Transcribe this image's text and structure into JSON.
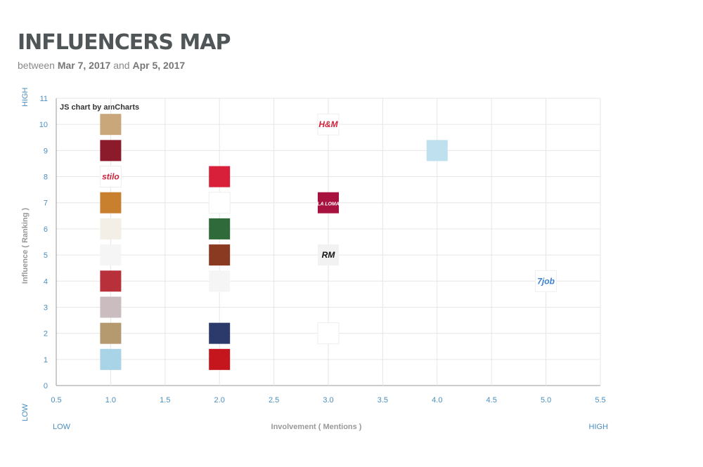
{
  "title": "INFLUENCERS MAP",
  "subtitle": {
    "lead": "between",
    "start": "Mar 7, 2017",
    "joiner": "and",
    "end": "Apr 5, 2017"
  },
  "chart_data": {
    "type": "scatter",
    "credit": "JS chart by amCharts",
    "x_label": "Involvement ( Mentions )",
    "y_label": "Influence ( Ranking )",
    "x_low": "LOW",
    "x_high": "HIGH",
    "y_low": "LOW",
    "y_high": "HIGH",
    "xlim": [
      0.5,
      5.5
    ],
    "xticks": [
      0.5,
      {
        "value": 1,
        "label": "1.0"
      },
      1.5,
      {
        "value": 2,
        "label": "2.0"
      },
      2.5,
      {
        "value": 3,
        "label": "3.0"
      },
      3.5,
      {
        "value": 4,
        "label": "4.0"
      },
      4.5,
      {
        "value": 5,
        "label": "5.0"
      },
      5.5
    ],
    "ylim": [
      0,
      11
    ],
    "yticks": [
      0,
      1,
      2,
      3,
      4,
      5,
      6,
      7,
      8,
      9,
      10,
      11
    ],
    "grid": true,
    "series": [
      {
        "x": [
          1,
          1,
          1,
          1,
          1,
          1,
          1,
          1,
          1,
          1,
          2,
          2,
          2,
          2,
          2,
          2,
          2,
          3,
          3,
          3,
          3,
          4,
          5
        ],
        "values": [
          10,
          9,
          8,
          7,
          6,
          5,
          4,
          3,
          2,
          1,
          8,
          7,
          6,
          5,
          4,
          2,
          1,
          10,
          7,
          5,
          2,
          9,
          4
        ],
        "labels": [
          null,
          null,
          "stilo",
          null,
          null,
          null,
          null,
          null,
          null,
          null,
          null,
          null,
          null,
          null,
          null,
          null,
          null,
          "H&M",
          "LA LOMA",
          "RM",
          null,
          null,
          "7job"
        ],
        "colors": [
          "#c9a77a",
          "#8b1a2b",
          "#ffffff",
          "#c8802f",
          "#f3efe6",
          "#f5f5f5",
          "#b8303a",
          "#cbbcc0",
          "#b59a70",
          "#a9d3e6",
          "#d8203a",
          "#ffffff",
          "#2f6a3a",
          "#8a3a20",
          "#f5f5f5",
          "#2b3a6b",
          "#c4161c",
          "#ffffff",
          "#a8123e",
          "#f2f2f2",
          "#ffffff",
          "#bfe1ef",
          "#ffffff"
        ]
      }
    ]
  }
}
